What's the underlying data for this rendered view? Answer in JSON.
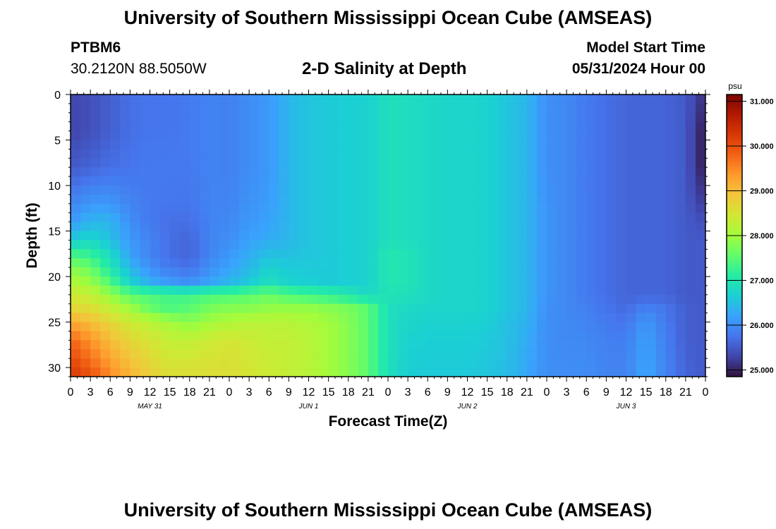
{
  "header": {
    "main_title": "University of Southern Mississippi Ocean Cube (AMSEAS)",
    "station_id": "PTBM6",
    "station_coords": "30.2120N  88.5050W",
    "chart_title": "2-D Salinity at Depth",
    "start_label": "Model Start Time",
    "start_value": "05/31/2024 Hour 00"
  },
  "footer": {
    "repeat_title": "University of Southern Mississippi Ocean Cube (AMSEAS)"
  },
  "chart_data": {
    "type": "heatmap",
    "title": "2-D Salinity at Depth",
    "xlabel": "Forecast Time(Z)",
    "ylabel": "Depth (ft)",
    "colorbar_unit": "psu",
    "xlim": [
      0,
      96
    ],
    "ylim": [
      0,
      31
    ],
    "y_inverted": true,
    "x_tick_labels": [
      "0",
      "3",
      "6",
      "9",
      "12",
      "15",
      "18",
      "21",
      "0",
      "3",
      "6",
      "9",
      "12",
      "15",
      "18",
      "21",
      "0",
      "3",
      "6",
      "9",
      "12",
      "15",
      "18",
      "21",
      "0",
      "3",
      "6",
      "9",
      "12",
      "15",
      "18",
      "21",
      "0"
    ],
    "day_labels": [
      {
        "hour": 12,
        "label": "MAY 31"
      },
      {
        "hour": 36,
        "label": "JUN 1"
      },
      {
        "hour": 60,
        "label": "JUN 2"
      },
      {
        "hour": 84,
        "label": "JUN 3"
      }
    ],
    "y_ticks": [
      0,
      5,
      10,
      15,
      20,
      25,
      30
    ],
    "color_range": [
      24.85,
      31.15
    ],
    "colorbar_ticks": [
      "25.000",
      "26.000",
      "27.000",
      "28.000",
      "29.000",
      "30.000",
      "31.000"
    ],
    "colorbar_colors": [
      "#30123b",
      "#4145ab",
      "#4675ed",
      "#39a2fc",
      "#1bcfd4",
      "#24eca6",
      "#61fc6c",
      "#a4fc3b",
      "#d1e834",
      "#f3c63a",
      "#fe9b2d",
      "#f36315",
      "#d93806",
      "#b11901",
      "#7a0403"
    ],
    "depths_ft": [
      0,
      4,
      8,
      12,
      14,
      16,
      17.5,
      19,
      20.5,
      22,
      23.5,
      25,
      27,
      31
    ],
    "times_hr": [
      0,
      3,
      6,
      9,
      12,
      15,
      18,
      21,
      24,
      27,
      30,
      33,
      36,
      39,
      42,
      45,
      48,
      51,
      54,
      57,
      60,
      63,
      66,
      69,
      72,
      75,
      78,
      81,
      84,
      87,
      90,
      93,
      96
    ],
    "salinity_psu": [
      [
        25.3,
        25.4,
        25.55,
        25.7,
        25.75,
        25.75,
        25.8,
        25.9,
        25.85,
        26.0,
        26.1,
        26.4,
        26.55,
        26.6,
        26.65,
        26.7,
        26.9,
        26.85,
        26.8,
        26.75,
        26.75,
        26.7,
        26.55,
        26.4,
        26.0,
        25.95,
        25.8,
        25.7,
        25.6,
        25.6,
        25.6,
        25.5,
        25.1
      ],
      [
        25.3,
        25.4,
        25.55,
        25.7,
        25.75,
        25.75,
        25.8,
        25.9,
        25.85,
        26.0,
        26.1,
        26.4,
        26.55,
        26.6,
        26.65,
        26.7,
        26.9,
        26.85,
        26.8,
        26.75,
        26.75,
        26.7,
        26.55,
        26.4,
        26.0,
        25.95,
        25.8,
        25.7,
        25.6,
        25.6,
        25.6,
        25.5,
        24.9
      ],
      [
        25.5,
        25.6,
        25.7,
        25.75,
        25.8,
        25.8,
        25.8,
        25.9,
        25.85,
        26.0,
        26.1,
        26.4,
        26.55,
        26.6,
        26.65,
        26.7,
        26.9,
        26.85,
        26.8,
        26.75,
        26.75,
        26.7,
        26.55,
        26.4,
        26.0,
        25.95,
        25.8,
        25.7,
        25.6,
        25.6,
        25.6,
        25.5,
        24.9
      ],
      [
        25.9,
        26.1,
        26.1,
        25.9,
        25.8,
        25.75,
        25.75,
        25.9,
        25.9,
        26.05,
        26.15,
        26.4,
        26.55,
        26.6,
        26.65,
        26.7,
        26.9,
        26.85,
        26.8,
        26.75,
        26.75,
        26.7,
        26.55,
        26.4,
        26.05,
        25.95,
        25.8,
        25.7,
        25.6,
        25.6,
        25.6,
        25.5,
        25.2
      ],
      [
        26.1,
        26.4,
        26.4,
        26.0,
        25.8,
        25.7,
        25.7,
        25.9,
        25.95,
        26.1,
        26.2,
        26.4,
        26.55,
        26.6,
        26.65,
        26.7,
        26.9,
        26.85,
        26.8,
        26.75,
        26.75,
        26.7,
        26.55,
        26.4,
        26.05,
        25.95,
        25.8,
        25.7,
        25.6,
        25.6,
        25.6,
        25.5,
        25.4
      ],
      [
        26.6,
        26.8,
        26.5,
        26.1,
        25.9,
        25.7,
        25.6,
        25.9,
        26.0,
        26.2,
        26.3,
        26.4,
        26.55,
        26.6,
        26.65,
        26.7,
        26.9,
        26.85,
        26.8,
        26.75,
        26.75,
        26.7,
        26.55,
        26.4,
        26.05,
        25.95,
        25.8,
        25.7,
        25.6,
        25.6,
        25.6,
        25.5,
        25.5
      ],
      [
        27.3,
        27.2,
        26.8,
        26.2,
        25.9,
        25.7,
        25.6,
        25.9,
        26.1,
        26.3,
        26.5,
        26.5,
        26.55,
        26.6,
        26.65,
        26.7,
        27.0,
        26.95,
        26.8,
        26.75,
        26.75,
        26.7,
        26.55,
        26.4,
        26.05,
        25.95,
        25.8,
        25.7,
        25.6,
        25.6,
        25.6,
        25.5,
        25.5
      ],
      [
        27.8,
        27.6,
        27.0,
        26.4,
        26.0,
        25.8,
        25.7,
        26.0,
        26.2,
        26.4,
        26.7,
        26.6,
        26.6,
        26.6,
        26.65,
        26.7,
        27.0,
        26.95,
        26.8,
        26.75,
        26.75,
        26.7,
        26.55,
        26.4,
        26.05,
        25.95,
        25.8,
        25.7,
        25.6,
        25.6,
        25.6,
        25.5,
        25.5
      ],
      [
        28.1,
        27.9,
        27.4,
        26.7,
        26.3,
        26.1,
        26.0,
        26.2,
        26.4,
        26.6,
        26.9,
        26.7,
        26.65,
        26.6,
        26.65,
        26.7,
        27.0,
        26.95,
        26.8,
        26.75,
        26.75,
        26.7,
        26.55,
        26.4,
        26.05,
        25.95,
        25.8,
        25.7,
        25.6,
        25.6,
        25.6,
        25.5,
        25.5
      ],
      [
        28.4,
        28.3,
        27.9,
        27.5,
        27.4,
        27.3,
        27.3,
        27.4,
        27.4,
        27.5,
        27.6,
        27.4,
        27.3,
        27.2,
        27.0,
        26.8,
        26.95,
        26.9,
        26.8,
        26.75,
        26.75,
        26.7,
        26.55,
        26.4,
        26.05,
        25.95,
        25.8,
        25.7,
        25.6,
        25.6,
        25.6,
        25.5,
        25.5
      ],
      [
        28.7,
        28.6,
        28.3,
        28.0,
        27.6,
        27.4,
        27.5,
        27.7,
        27.8,
        27.8,
        27.9,
        27.9,
        27.9,
        27.8,
        27.7,
        27.5,
        26.9,
        26.8,
        26.75,
        26.75,
        26.75,
        26.7,
        26.55,
        26.4,
        26.0,
        25.95,
        25.85,
        25.75,
        25.65,
        25.9,
        25.75,
        25.55,
        25.5
      ],
      [
        29.2,
        29.0,
        28.7,
        28.4,
        28.2,
        28.0,
        27.8,
        28.0,
        28.1,
        28.2,
        28.2,
        28.2,
        28.1,
        28.0,
        27.8,
        27.5,
        26.9,
        26.75,
        26.7,
        26.7,
        26.7,
        26.65,
        26.5,
        26.35,
        26.0,
        25.95,
        25.9,
        25.8,
        25.75,
        26.1,
        25.8,
        25.55,
        25.5
      ],
      [
        29.8,
        29.4,
        29.0,
        28.7,
        28.5,
        28.3,
        28.3,
        28.4,
        28.5,
        28.4,
        28.3,
        28.3,
        28.2,
        28.0,
        27.8,
        27.5,
        26.9,
        26.7,
        26.65,
        26.65,
        26.65,
        26.6,
        26.5,
        26.3,
        26.0,
        25.95,
        25.95,
        25.85,
        25.85,
        26.2,
        25.85,
        25.55,
        25.5
      ],
      [
        30.3,
        30.0,
        29.5,
        29.1,
        28.8,
        28.6,
        28.6,
        28.6,
        28.6,
        28.5,
        28.4,
        28.3,
        28.2,
        28.0,
        27.8,
        27.5,
        26.9,
        26.65,
        26.6,
        26.6,
        26.6,
        26.55,
        26.45,
        26.25,
        26.0,
        26.0,
        26.0,
        25.9,
        25.9,
        26.25,
        25.9,
        25.6,
        25.5
      ]
    ]
  }
}
